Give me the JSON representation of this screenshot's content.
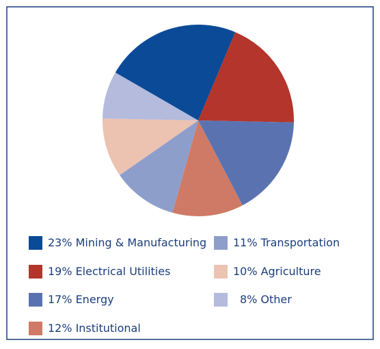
{
  "chart_data": {
    "type": "pie",
    "categories": [
      "Mining & Manufacturing",
      "Electrical Utilities",
      "Energy",
      "Institutional",
      "Transportation",
      "Agriculture",
      "Other"
    ],
    "values": [
      23,
      19,
      17,
      12,
      11,
      10,
      8
    ],
    "value_labels": [
      "23%",
      "19%",
      "17%",
      "12%",
      "11%",
      "10%",
      "8%"
    ],
    "colors": [
      "#0b4a97",
      "#b3352b",
      "#5a73b0",
      "#cf7a66",
      "#8e9ecb",
      "#ecc2b1",
      "#b4bbdc"
    ]
  }
}
